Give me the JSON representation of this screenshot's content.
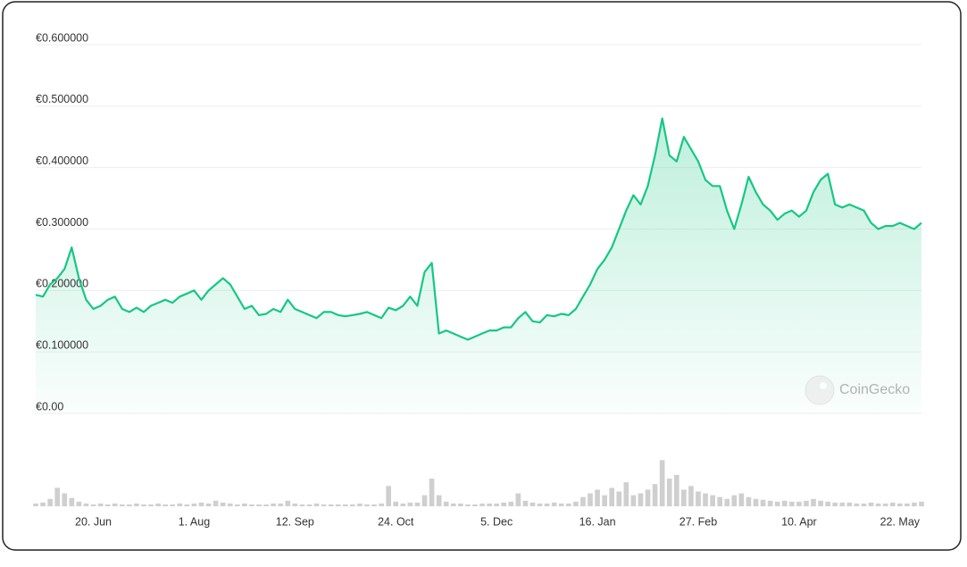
{
  "chart_data": {
    "type": "line",
    "categories": [
      null,
      null,
      null,
      null,
      null,
      null,
      null,
      null,
      "20. Jun",
      null,
      null,
      null,
      null,
      null,
      null,
      null,
      null,
      null,
      null,
      null,
      null,
      null,
      "1. Aug",
      null,
      null,
      null,
      null,
      null,
      null,
      null,
      null,
      null,
      null,
      null,
      null,
      null,
      "12. Sep",
      null,
      null,
      null,
      null,
      null,
      null,
      null,
      null,
      null,
      null,
      null,
      null,
      null,
      "24. Oct",
      null,
      null,
      null,
      null,
      null,
      null,
      null,
      null,
      null,
      null,
      null,
      null,
      null,
      "5. Dec",
      null,
      null,
      null,
      null,
      null,
      null,
      null,
      null,
      null,
      null,
      null,
      null,
      null,
      "16. Jan",
      null,
      null,
      null,
      null,
      null,
      null,
      null,
      null,
      null,
      null,
      null,
      null,
      null,
      "27. Feb",
      null,
      null,
      null,
      null,
      null,
      null,
      null,
      null,
      null,
      null,
      null,
      null,
      null,
      "10. Apr",
      null,
      null,
      null,
      null,
      null,
      null,
      null,
      null,
      null,
      null,
      null,
      null,
      null,
      "22. May",
      null,
      null,
      null
    ],
    "series": [
      {
        "color": "#16c784",
        "values": [
          0.193,
          0.19,
          0.21,
          0.22,
          0.235,
          0.27,
          0.22,
          0.185,
          0.17,
          0.175,
          0.185,
          0.19,
          0.17,
          0.165,
          0.172,
          0.165,
          0.175,
          0.18,
          0.185,
          0.18,
          0.19,
          0.195,
          0.2,
          0.185,
          0.2,
          0.21,
          0.22,
          0.21,
          0.19,
          0.17,
          0.175,
          0.16,
          0.162,
          0.17,
          0.165,
          0.185,
          0.17,
          0.165,
          0.16,
          0.155,
          0.165,
          0.165,
          0.16,
          0.158,
          0.16,
          0.162,
          0.165,
          0.16,
          0.155,
          0.172,
          0.168,
          0.175,
          0.19,
          0.175,
          0.23,
          0.245,
          0.13,
          0.135,
          0.13,
          0.125,
          0.12,
          0.125,
          0.13,
          0.135,
          0.135,
          0.14,
          0.14,
          0.155,
          0.165,
          0.15,
          0.148,
          0.16,
          0.158,
          0.162,
          0.16,
          0.17,
          0.19,
          0.21,
          0.235,
          0.25,
          0.27,
          0.3,
          0.33,
          0.355,
          0.34,
          0.37,
          0.42,
          0.48,
          0.42,
          0.41,
          0.45,
          0.43,
          0.41,
          0.38,
          0.37,
          0.37,
          0.33,
          0.3,
          0.34,
          0.385,
          0.36,
          0.34,
          0.33,
          0.315,
          0.325,
          0.33,
          0.32,
          0.33,
          0.36,
          0.38,
          0.39,
          0.34,
          0.335,
          0.34,
          0.335,
          0.33,
          0.31,
          0.3,
          0.305,
          0.305,
          0.31,
          0.305,
          0.3,
          0.31
        ]
      },
      {
        "axis": "y2",
        "color": "#cfcfcf",
        "values": [
          3,
          4,
          8,
          20,
          14,
          9,
          5,
          3,
          2,
          3,
          2,
          3,
          2,
          2,
          3,
          2,
          2,
          3,
          2,
          2,
          3,
          2,
          3,
          4,
          3,
          6,
          4,
          3,
          2,
          3,
          2,
          2,
          2,
          3,
          3,
          6,
          3,
          2,
          2,
          3,
          2,
          2,
          2,
          2,
          2,
          3,
          2,
          2,
          3,
          22,
          5,
          3,
          4,
          4,
          12,
          30,
          12,
          5,
          3,
          3,
          2,
          2,
          3,
          3,
          3,
          4,
          5,
          14,
          6,
          4,
          3,
          3,
          4,
          3,
          3,
          5,
          10,
          14,
          18,
          12,
          20,
          16,
          26,
          12,
          14,
          18,
          24,
          50,
          30,
          34,
          18,
          22,
          16,
          14,
          12,
          10,
          8,
          12,
          14,
          10,
          8,
          7,
          6,
          5,
          6,
          5,
          5,
          6,
          8,
          6,
          5,
          4,
          4,
          4,
          3,
          3,
          4,
          3,
          3,
          4,
          3,
          3,
          4,
          5
        ]
      }
    ],
    "ylim": [
      0,
      0.6
    ],
    "y2lim": [
      0,
      60
    ],
    "yticks": [
      {
        "value": 0,
        "label": "€0.00"
      },
      {
        "value": 0.1,
        "label": "€0.100000"
      },
      {
        "value": 0.2,
        "label": "€0.200000"
      },
      {
        "value": 0.3,
        "label": "€0.300000"
      },
      {
        "value": 0.4,
        "label": "€0.400000"
      },
      {
        "value": 0.5,
        "label": "€0.500000"
      },
      {
        "value": 0.6,
        "label": "€0.600000"
      }
    ],
    "grid": true,
    "watermark": "CoinGecko"
  }
}
